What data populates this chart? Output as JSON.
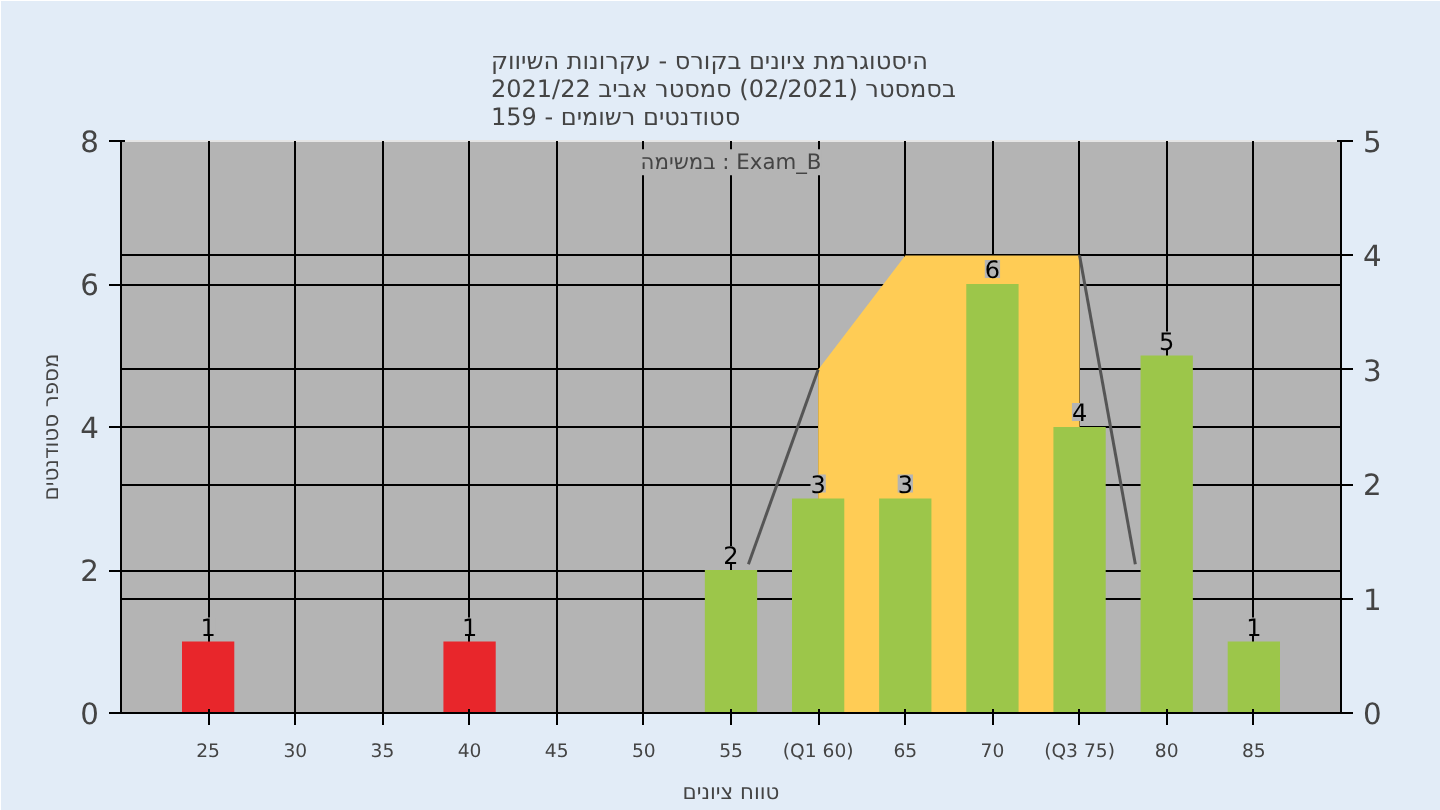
{
  "chart_data": {
    "type": "bar",
    "title": "היסטוגרמת ציונים בקורס - עקרונות השיווק\nבסמסטר  (02/2021)  סמסטר אביב 2021/22\nסטודנטים רשומים - 159",
    "xlabel": "טווח ציונים",
    "ylabel": "מספר סטודנטים",
    "annotations": [
      "במשימה : Exam_B"
    ],
    "x": [
      25,
      40,
      55,
      60,
      65,
      70,
      75,
      80,
      85
    ],
    "values": [
      1,
      1,
      2,
      3,
      3,
      6,
      4,
      5,
      1
    ],
    "colors": [
      "#e8262b",
      "#e8262b",
      "#9cc64a",
      "#9cc64a",
      "#9cc64a",
      "#9cc64a",
      "#9cc64a",
      "#9cc64a",
      "#9cc64a"
    ],
    "series": [
      {
        "type": "area",
        "axis": "y2",
        "color": "#ffcc55",
        "x": [
          60,
          65,
          75
        ],
        "values": [
          3,
          4,
          4
        ]
      },
      {
        "type": "line",
        "axis": "y2",
        "color": "#555555",
        "x": [
          56,
          60
        ],
        "values": [
          1.3,
          3
        ]
      },
      {
        "type": "line",
        "axis": "y2",
        "color": "#555555",
        "x": [
          75,
          78.2
        ],
        "values": [
          4,
          1.3
        ]
      }
    ],
    "value_labels": [
      "1",
      "1",
      "2",
      "3",
      "3",
      "6",
      "4",
      "5",
      "1"
    ],
    "xlim": [
      20,
      90
    ],
    "xticks": [
      25,
      30,
      35,
      40,
      45,
      50,
      55,
      {
        "value": 60,
        "label": "(Q1 60)"
      },
      65,
      70,
      {
        "value": 75,
        "label": "(Q3 75)"
      },
      80,
      85
    ],
    "ylim": [
      0,
      8
    ],
    "yticks": [
      0,
      2,
      4,
      6,
      8
    ],
    "y2lim": [
      0,
      5
    ],
    "y2ticks": [
      0,
      1,
      2,
      3,
      4,
      5
    ],
    "grid": true
  }
}
